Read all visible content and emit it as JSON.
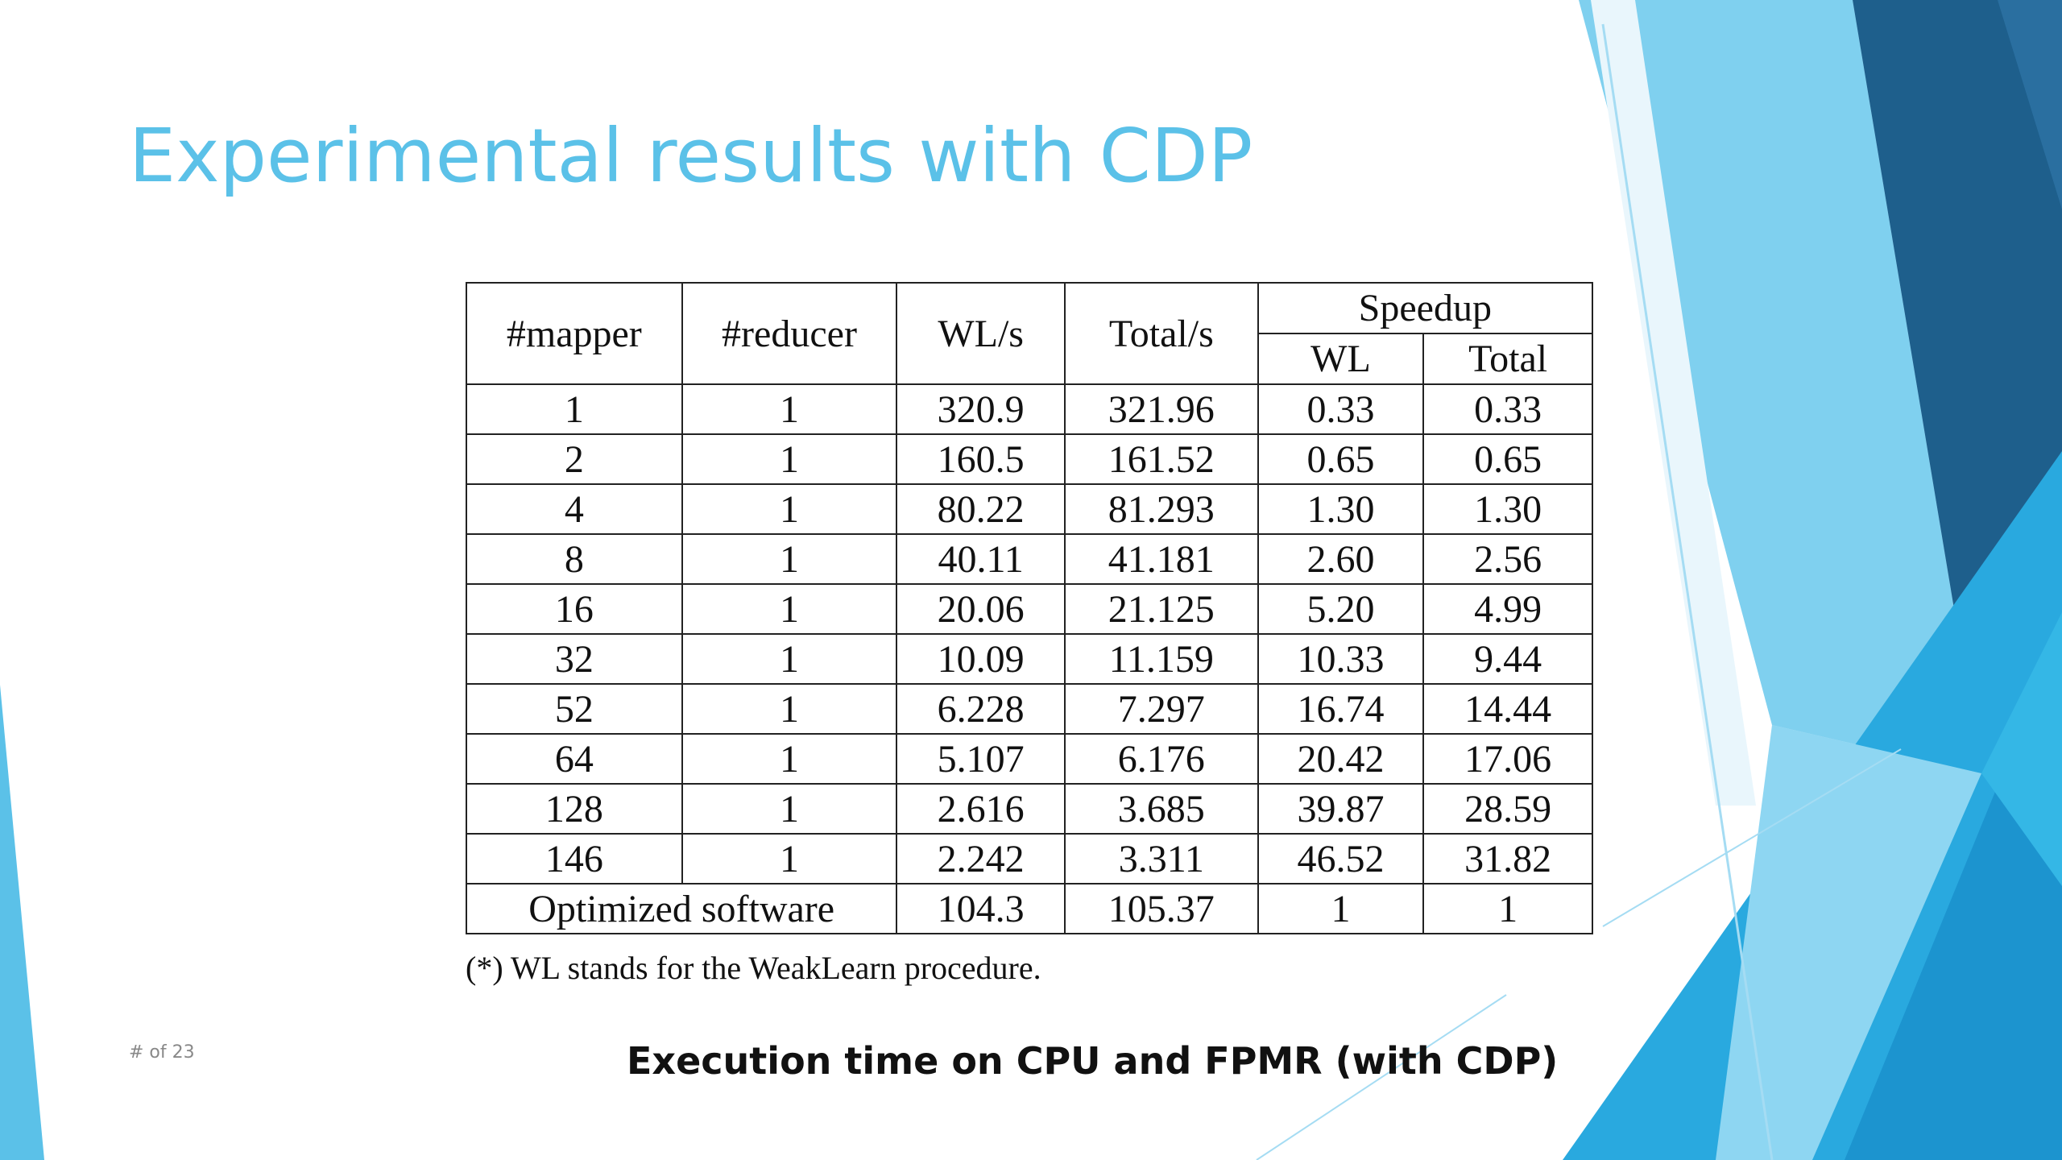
{
  "slide": {
    "title": "Experimental results with CDP",
    "page_number": "# of 23",
    "caption": "Execution time on CPU and FPMR (with CDP)",
    "footnote": "(*) WL stands for the WeakLearn procedure.",
    "accent_colors": [
      "#5bc1e8",
      "#1e5f8c",
      "#29a9df",
      "#a8dcf3"
    ]
  },
  "table": {
    "headers": {
      "mapper": "#mapper",
      "reducer": "#reducer",
      "wl_s": "WL/s",
      "total_s": "Total/s",
      "speedup": "Speedup",
      "speedup_wl": "WL",
      "speedup_total": "Total"
    },
    "rows": [
      [
        "1",
        "1",
        "320.9",
        "321.96",
        "0.33",
        "0.33"
      ],
      [
        "2",
        "1",
        "160.5",
        "161.52",
        "0.65",
        "0.65"
      ],
      [
        "4",
        "1",
        "80.22",
        "81.293",
        "1.30",
        "1.30"
      ],
      [
        "8",
        "1",
        "40.11",
        "41.181",
        "2.60",
        "2.56"
      ],
      [
        "16",
        "1",
        "20.06",
        "21.125",
        "5.20",
        "4.99"
      ],
      [
        "32",
        "1",
        "10.09",
        "11.159",
        "10.33",
        "9.44"
      ],
      [
        "52",
        "1",
        "6.228",
        "7.297",
        "16.74",
        "14.44"
      ],
      [
        "64",
        "1",
        "5.107",
        "6.176",
        "20.42",
        "17.06"
      ],
      [
        "128",
        "1",
        "2.616",
        "3.685",
        "39.87",
        "28.59"
      ],
      [
        "146",
        "1",
        "2.242",
        "3.311",
        "46.52",
        "31.82"
      ]
    ],
    "last_row": {
      "label": "Optimized software",
      "wl_s": "104.3",
      "total_s": "105.37",
      "speedup_wl": "1",
      "speedup_total": "1"
    }
  }
}
